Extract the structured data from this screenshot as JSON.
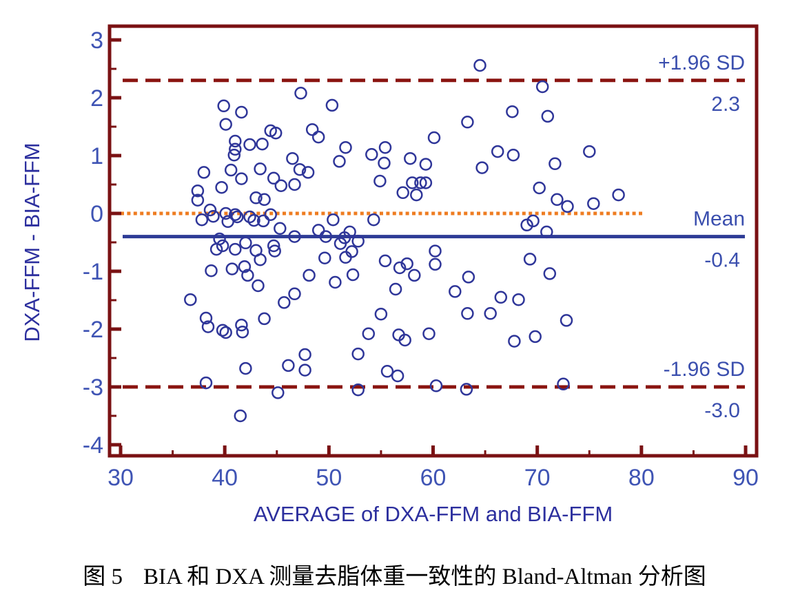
{
  "chart_data": {
    "type": "scatter",
    "title": "",
    "xlabel": "AVERAGE of DXA-FFM and BIA-FFM",
    "ylabel": "DXA-FFM - BIA-FFM",
    "xlim": [
      30,
      90
    ],
    "ylim": [
      -4,
      3
    ],
    "x_ticks": [
      30,
      40,
      50,
      60,
      70,
      80,
      90
    ],
    "y_ticks": [
      3,
      2,
      1,
      0,
      -1,
      -2,
      -3,
      -4
    ],
    "grid": false,
    "legend_position": "none",
    "marker": "open-circle",
    "marker_color": "#2f3699",
    "reference_lines": [
      {
        "name": "upper-loa",
        "label": "+1.96 SD",
        "value_label": "2.3",
        "value": 2.3,
        "style": "dashed",
        "color": "#8a1410"
      },
      {
        "name": "zero-line",
        "label": "",
        "value_label": "",
        "value": 0.0,
        "style": "dotted",
        "color": "#ee7c21"
      },
      {
        "name": "mean-line",
        "label": "Mean",
        "value_label": "-0.4",
        "value": -0.4,
        "style": "solid",
        "color": "#2d3b96"
      },
      {
        "name": "lower-loa",
        "label": "-1.96 SD",
        "value_label": "-3.0",
        "value": -3.0,
        "style": "dashed",
        "color": "#8a1410"
      }
    ],
    "points": [
      [
        47.3,
        2.08
      ],
      [
        39.9,
        1.86
      ],
      [
        41.6,
        1.75
      ],
      [
        40.1,
        1.54
      ],
      [
        44.4,
        1.43
      ],
      [
        44.9,
        1.39
      ],
      [
        48.4,
        1.45
      ],
      [
        49.0,
        1.32
      ],
      [
        41.0,
        1.25
      ],
      [
        41.0,
        1.11
      ],
      [
        42.4,
        1.19
      ],
      [
        43.6,
        1.2
      ],
      [
        40.9,
        1.01
      ],
      [
        46.5,
        0.95
      ],
      [
        47.2,
        0.76
      ],
      [
        38.0,
        0.71
      ],
      [
        40.6,
        0.75
      ],
      [
        43.4,
        0.77
      ],
      [
        48.0,
        0.71
      ],
      [
        50.3,
        1.87
      ],
      [
        64.5,
        2.56
      ],
      [
        70.5,
        2.19
      ],
      [
        67.6,
        1.76
      ],
      [
        71.0,
        1.68
      ],
      [
        63.3,
        1.58
      ],
      [
        60.1,
        1.31
      ],
      [
        51.6,
        1.14
      ],
      [
        55.4,
        1.14
      ],
      [
        54.1,
        1.02
      ],
      [
        57.8,
        0.95
      ],
      [
        51.0,
        0.9
      ],
      [
        55.3,
        0.87
      ],
      [
        59.3,
        0.85
      ],
      [
        66.2,
        1.07
      ],
      [
        67.7,
        1.01
      ],
      [
        64.7,
        0.79
      ],
      [
        75.0,
        1.07
      ],
      [
        71.7,
        0.86
      ],
      [
        41.6,
        0.6
      ],
      [
        44.7,
        0.61
      ],
      [
        45.4,
        0.48
      ],
      [
        46.7,
        0.5
      ],
      [
        39.7,
        0.45
      ],
      [
        37.4,
        0.39
      ],
      [
        37.4,
        0.23
      ],
      [
        38.6,
        0.06
      ],
      [
        37.8,
        -0.11
      ],
      [
        38.9,
        -0.05
      ],
      [
        40.1,
        0.0
      ],
      [
        41.0,
        -0.02
      ],
      [
        41.2,
        -0.06
      ],
      [
        40.3,
        -0.14
      ],
      [
        42.4,
        -0.06
      ],
      [
        42.8,
        -0.12
      ],
      [
        43.7,
        -0.13
      ],
      [
        44.4,
        -0.02
      ],
      [
        43.0,
        0.27
      ],
      [
        43.8,
        0.24
      ],
      [
        45.3,
        -0.26
      ],
      [
        46.7,
        -0.4
      ],
      [
        49.0,
        -0.29
      ],
      [
        49.7,
        -0.4
      ],
      [
        39.5,
        -0.44
      ],
      [
        39.8,
        -0.56
      ],
      [
        39.2,
        -0.62
      ],
      [
        41.0,
        -0.62
      ],
      [
        42.0,
        -0.51
      ],
      [
        43.0,
        -0.64
      ],
      [
        43.4,
        -0.8
      ],
      [
        44.7,
        -0.56
      ],
      [
        44.8,
        -0.65
      ],
      [
        49.6,
        -0.77
      ],
      [
        38.7,
        -0.99
      ],
      [
        40.7,
        -0.96
      ],
      [
        41.9,
        -0.92
      ],
      [
        42.2,
        -1.07
      ],
      [
        43.2,
        -1.25
      ],
      [
        48.1,
        -1.07
      ],
      [
        36.7,
        -1.49
      ],
      [
        45.7,
        -1.54
      ],
      [
        46.7,
        -1.39
      ],
      [
        54.9,
        0.56
      ],
      [
        58.0,
        0.53
      ],
      [
        58.8,
        0.53
      ],
      [
        59.3,
        0.53
      ],
      [
        57.1,
        0.36
      ],
      [
        58.4,
        0.32
      ],
      [
        70.2,
        0.44
      ],
      [
        50.4,
        -0.11
      ],
      [
        54.3,
        -0.11
      ],
      [
        69.0,
        -0.2
      ],
      [
        69.6,
        -0.13
      ],
      [
        70.9,
        -0.32
      ],
      [
        52.0,
        -0.32
      ],
      [
        51.5,
        -0.42
      ],
      [
        51.1,
        -0.52
      ],
      [
        52.8,
        -0.48
      ],
      [
        52.2,
        -0.66
      ],
      [
        51.6,
        -0.76
      ],
      [
        50.6,
        -1.19
      ],
      [
        52.3,
        -1.06
      ],
      [
        55.4,
        -0.82
      ],
      [
        56.8,
        -0.94
      ],
      [
        57.5,
        -0.87
      ],
      [
        58.2,
        -1.07
      ],
      [
        60.2,
        -0.65
      ],
      [
        60.2,
        -0.88
      ],
      [
        56.4,
        -1.31
      ],
      [
        63.4,
        -1.1
      ],
      [
        62.1,
        -1.35
      ],
      [
        69.3,
        -0.79
      ],
      [
        71.2,
        -1.04
      ],
      [
        66.5,
        -1.45
      ],
      [
        68.2,
        -1.49
      ],
      [
        55.0,
        -1.74
      ],
      [
        63.3,
        -1.73
      ],
      [
        65.5,
        -1.73
      ],
      [
        71.9,
        0.24
      ],
      [
        72.9,
        0.12
      ],
      [
        75.4,
        0.17
      ],
      [
        77.8,
        0.32
      ],
      [
        72.8,
        -1.85
      ],
      [
        38.2,
        -1.81
      ],
      [
        38.4,
        -1.96
      ],
      [
        39.8,
        -2.02
      ],
      [
        40.1,
        -2.06
      ],
      [
        41.6,
        -1.93
      ],
      [
        41.7,
        -2.05
      ],
      [
        43.8,
        -1.82
      ],
      [
        42.0,
        -2.68
      ],
      [
        46.1,
        -2.63
      ],
      [
        47.7,
        -2.44
      ],
      [
        47.7,
        -2.71
      ],
      [
        38.2,
        -2.93
      ],
      [
        45.1,
        -3.1
      ],
      [
        41.5,
        -3.5
      ],
      [
        53.8,
        -2.08
      ],
      [
        56.7,
        -2.1
      ],
      [
        57.3,
        -2.19
      ],
      [
        59.6,
        -2.08
      ],
      [
        52.8,
        -2.43
      ],
      [
        55.6,
        -2.73
      ],
      [
        56.6,
        -2.81
      ],
      [
        67.8,
        -2.21
      ],
      [
        69.8,
        -2.13
      ],
      [
        52.8,
        -3.05
      ],
      [
        60.3,
        -2.98
      ],
      [
        63.2,
        -3.04
      ],
      [
        72.5,
        -2.95
      ]
    ],
    "colors": {
      "frame": "#7a1113",
      "tick_label": "#3f54b4",
      "axis_title": "#2c2f9e",
      "ref_label": "#3b4fae"
    }
  },
  "caption": {
    "figure_label": "图 5",
    "text": "BIA 和 DXA 测量去脂体重一致性的 Bland-Altman 分析图"
  }
}
